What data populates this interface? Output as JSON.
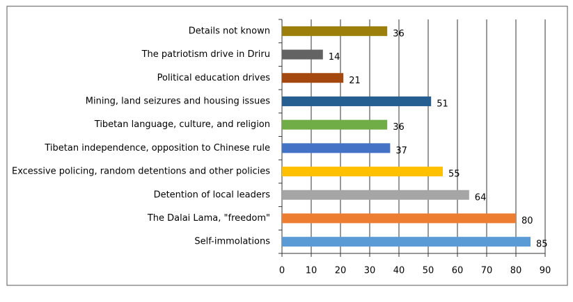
{
  "chart_data": {
    "type": "hbar",
    "categories": [
      "Details not known",
      "The patriotism drive in Driru",
      "Political education drives",
      "Mining, land seizures and housing issues",
      "Tibetan language, culture, and religion",
      "Tibetan independence, opposition to Chinese rule",
      "Excessive policing, random detentions and other policies",
      "Detention of local leaders",
      "The Dalai Lama, \"freedom\"",
      "Self-immolations"
    ],
    "values": [
      36,
      14,
      21,
      51,
      36,
      37,
      55,
      64,
      80,
      85
    ],
    "colors": [
      "#9c7f0a",
      "#636363",
      "#a5480f",
      "#255e91",
      "#70ad47",
      "#4472c4",
      "#ffc000",
      "#a5a5a5",
      "#ed7d31",
      "#5b9bd5"
    ],
    "xlim": [
      0,
      90
    ],
    "xticks": [
      0,
      10,
      20,
      30,
      40,
      50,
      60,
      70,
      80,
      90
    ],
    "grid": true
  }
}
